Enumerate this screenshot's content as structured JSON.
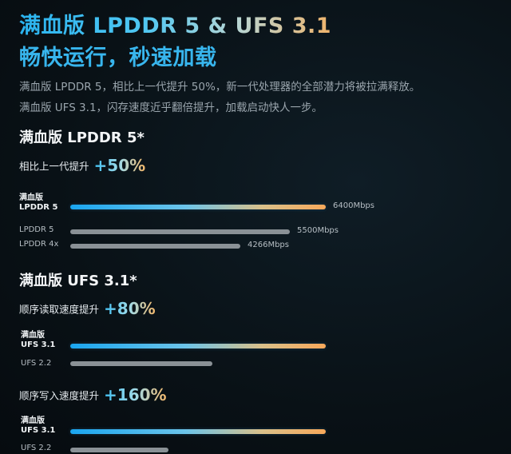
{
  "title_line1": "满血版 LPDDR 5 & UFS 3.1",
  "title_line2": "畅快运行，秒速加载",
  "desc_line1": "满血版 LPDDR 5，相比上一代提升 50%，新一代处理器的全部潜力将被拉满释放。",
  "desc_line2": "满血版 UFS 3.1，闪存速度近乎翻倍提升，加载启动快人一步。",
  "sections": [
    {
      "title": "满血版 LPDDR 5*",
      "improve_label": "相比上一代提升",
      "improve_value": "+50%"
    },
    {
      "title": "满血版 UFS 3.1*",
      "improve_label": "顺序读取速度提升",
      "improve_value": "+80%"
    },
    {
      "title": "",
      "improve_label": "顺序写入速度提升",
      "improve_value": "+160%"
    }
  ],
  "labels": {
    "full_prefix": "满血版",
    "lpddr5": "LPDDR 5",
    "lpddr4x": "LPDDR 4x",
    "ufs31": "UFS 3.1",
    "ufs22": "UFS 2.2"
  },
  "colors": {
    "accent_blue": "#38b6ee",
    "accent_orange": "#f7a85a",
    "bar_gray": "#8a9196",
    "background": "#091116"
  },
  "chart_data": [
    {
      "type": "bar",
      "orientation": "horizontal",
      "title": "满血版 LPDDR 5*",
      "categories": [
        "满血版 LPDDR 5",
        "LPDDR 5",
        "LPDDR 4x"
      ],
      "values": [
        6400,
        5500,
        4266
      ],
      "value_labels": [
        "6400Mbps",
        "5500Mbps",
        "4266Mbps"
      ],
      "unit": "Mbps",
      "annotation": "相比上一代提升 +50%"
    },
    {
      "type": "bar",
      "orientation": "horizontal",
      "title": "满血版 UFS 3.1*",
      "categories": [
        "满血版 UFS 3.1",
        "UFS 2.2"
      ],
      "values": [
        1.8,
        1.0
      ],
      "annotation": "顺序读取速度提升 +80%"
    },
    {
      "type": "bar",
      "orientation": "horizontal",
      "categories": [
        "满血版 UFS 3.1",
        "UFS 2.2"
      ],
      "values": [
        2.6,
        1.0
      ],
      "annotation": "顺序写入速度提升 +160%"
    }
  ]
}
